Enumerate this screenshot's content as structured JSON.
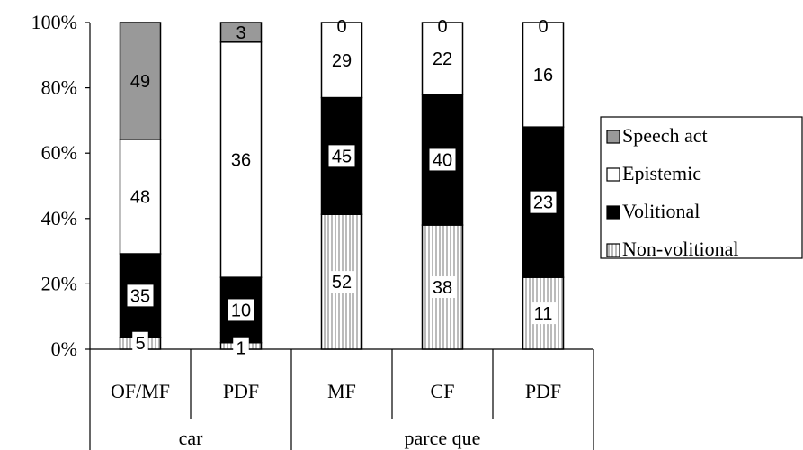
{
  "chart_data": {
    "type": "bar",
    "stacked": "percent",
    "groups": [
      {
        "label": "car",
        "categories": [
          "OF/MF",
          "PDF"
        ]
      },
      {
        "label": "parce que",
        "categories": [
          "MF",
          "CF",
          "PDF"
        ]
      }
    ],
    "categories": [
      "OF/MF",
      "PDF",
      "MF",
      "CF",
      "PDF"
    ],
    "y_tick_labels": [
      "0%",
      "20%",
      "40%",
      "60%",
      "80%",
      "100%"
    ],
    "ylim": [
      0,
      100
    ],
    "grid": false,
    "legend_position": "right",
    "series": [
      {
        "name": "Non-volitional",
        "key": "nonvol",
        "values": [
          5,
          1,
          52,
          38,
          11
        ],
        "fill": "pattern-vertical-lines"
      },
      {
        "name": "Volitional",
        "key": "vol",
        "values": [
          35,
          10,
          45,
          40,
          23
        ],
        "color": "#000000"
      },
      {
        "name": "Epistemic",
        "key": "epi",
        "values": [
          48,
          36,
          29,
          22,
          16
        ],
        "color": "#ffffff"
      },
      {
        "name": "Speech act",
        "key": "speech",
        "values": [
          49,
          3,
          0,
          0,
          0
        ],
        "color": "#999999"
      }
    ],
    "legend_order": [
      "Speech act",
      "Epistemic",
      "Volitional",
      "Non-volitional"
    ]
  }
}
